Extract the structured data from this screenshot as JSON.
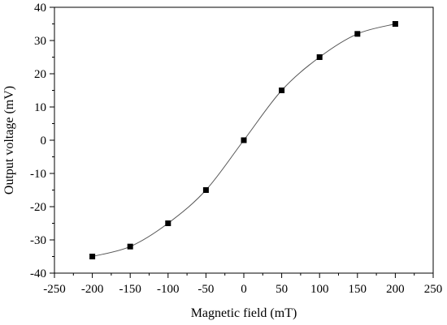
{
  "chart_data": {
    "type": "scatter",
    "xlabel": "Magnetic field (mT)",
    "ylabel": "Output voltage (mV)",
    "xlim": [
      -250,
      250
    ],
    "ylim": [
      -40,
      40
    ],
    "x_ticks": [
      -250,
      -200,
      -150,
      -100,
      -50,
      0,
      50,
      100,
      150,
      200,
      250
    ],
    "y_ticks": [
      -40,
      -30,
      -20,
      -10,
      0,
      10,
      20,
      30,
      40
    ],
    "grid": false,
    "series": [
      {
        "x": [
          -200,
          -150,
          -100,
          -50,
          0,
          50,
          100,
          150,
          200
        ],
        "y": [
          -35,
          -32,
          -25,
          -15,
          0,
          15,
          25,
          32,
          35
        ],
        "marker": "square",
        "fit_line": "smooth",
        "color": "#000000"
      }
    ]
  }
}
